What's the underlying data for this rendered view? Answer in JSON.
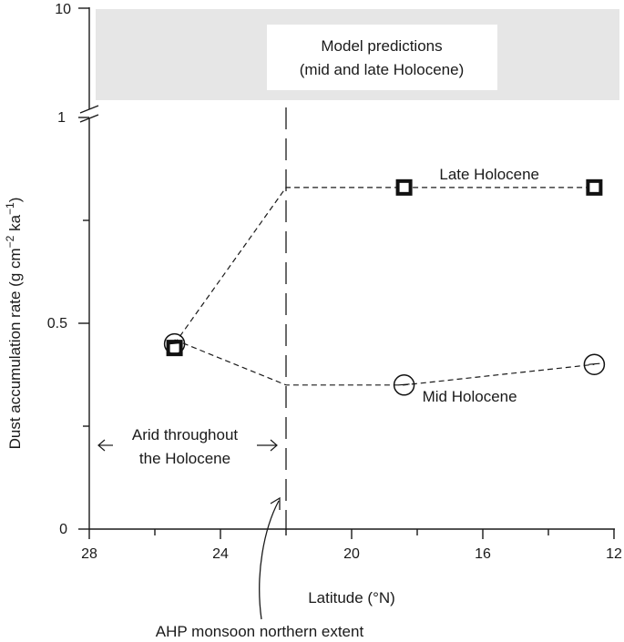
{
  "chart_data": {
    "type": "line",
    "xlabel": "Latitude (°N)",
    "ylabel_main": "Dust accumulation rate (g cm",
    "ylabel_sup1": "−2",
    "ylabel_mid": " ka",
    "ylabel_sup2": "−1",
    "ylabel_end": ")",
    "x_ticks": [
      "28",
      "24",
      "20",
      "16",
      "12"
    ],
    "x_tick_values": [
      28,
      24,
      20,
      16,
      12
    ],
    "x_range": [
      28,
      12
    ],
    "y_ticks": [
      "0",
      "0.5"
    ],
    "y_tick_values": [
      0,
      0.5
    ],
    "y_minor_ticks": [
      0.25,
      0.75
    ],
    "y_range": [
      0,
      1
    ],
    "y_break_labels": [
      "1",
      "10"
    ],
    "model_box_label_1": "Model predictions",
    "model_box_label_2": "(mid and late Holocene)",
    "monsoon_extent_latitude": 22,
    "arid_label_1": "Arid throughout",
    "arid_label_2": "the Holocene",
    "ahp_label": "AHP monsoon northern extent",
    "series": [
      {
        "name": "Late Holocene",
        "marker": "square",
        "line_x": [
          25.4,
          22,
          18.4,
          12.6
        ],
        "line_y": [
          0.45,
          0.83,
          0.83,
          0.83
        ],
        "points": [
          {
            "x": 25.4,
            "y": 0.44
          },
          {
            "x": 18.4,
            "y": 0.83
          },
          {
            "x": 12.6,
            "y": 0.83
          }
        ]
      },
      {
        "name": "Mid Holocene",
        "marker": "circle",
        "line_x": [
          25.4,
          22,
          18.4,
          12.6
        ],
        "line_y": [
          0.46,
          0.35,
          0.35,
          0.4
        ],
        "points": [
          {
            "x": 25.4,
            "y": 0.45
          },
          {
            "x": 18.4,
            "y": 0.35
          },
          {
            "x": 12.6,
            "y": 0.4
          }
        ]
      }
    ],
    "grid": false
  }
}
